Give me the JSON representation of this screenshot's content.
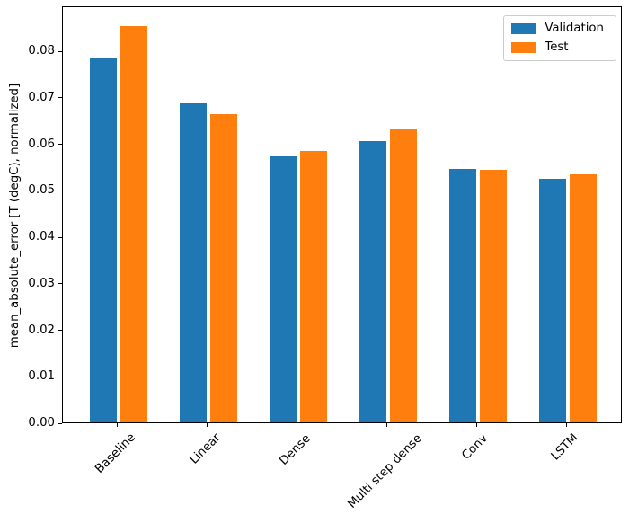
{
  "chart_data": {
    "type": "bar",
    "categories": [
      "Baseline",
      "Linear",
      "Dense",
      "Multi step dense",
      "Conv",
      "LSTM"
    ],
    "series": [
      {
        "name": "Validation",
        "color": "#1f77b4",
        "values": [
          0.0785,
          0.0686,
          0.0572,
          0.0606,
          0.0545,
          0.0524
        ]
      },
      {
        "name": "Test",
        "color": "#ff7f0e",
        "values": [
          0.0852,
          0.0663,
          0.0583,
          0.0633,
          0.0543,
          0.0533
        ]
      }
    ],
    "xlabel": "",
    "ylabel": "mean_absolute_error [T (degC), normalized]",
    "ylim": [
      0,
      0.0897
    ],
    "yticks": [
      "0.00",
      "0.01",
      "0.02",
      "0.03",
      "0.04",
      "0.05",
      "0.06",
      "0.07",
      "0.08"
    ],
    "grid": false,
    "bar_width_ratio": 0.3,
    "bar_offset_ratio": 0.17,
    "legend": {
      "position": "upper right",
      "entries": [
        "Validation",
        "Test"
      ]
    }
  }
}
